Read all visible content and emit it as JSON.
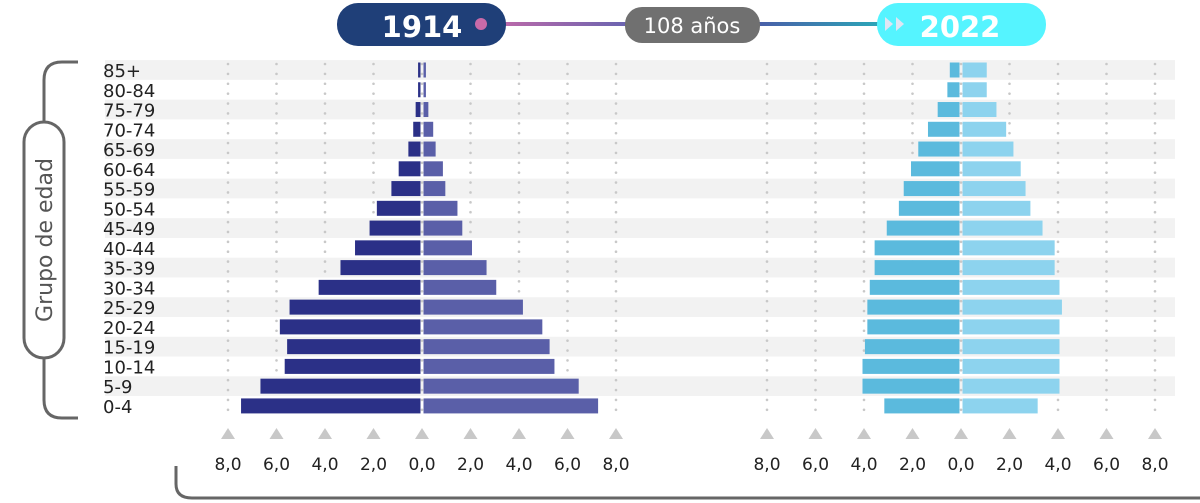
{
  "header": {
    "start_year": "1914",
    "span_label": "108 años",
    "end_year": "2022",
    "start_color": "#1f3f78",
    "span_color": "#707070",
    "end_color": "#55f4ff"
  },
  "y_axis_title": "Grupo de edad",
  "chart_data": [
    {
      "type": "bar",
      "orientation": "horizontal-pyramid",
      "year": "1914",
      "categories": [
        "85+",
        "80-84",
        "75-79",
        "70-74",
        "65-69",
        "60-64",
        "55-59",
        "50-54",
        "45-49",
        "40-44",
        "35-39",
        "30-34",
        "25-29",
        "20-24",
        "15-19",
        "10-14",
        "5-9",
        "0-4"
      ],
      "series": [
        {
          "side": "left",
          "color": "#2b3087",
          "values": [
            0.1,
            0.1,
            0.2,
            0.3,
            0.5,
            0.9,
            1.2,
            1.8,
            2.1,
            2.7,
            3.3,
            4.2,
            5.4,
            5.8,
            5.5,
            5.6,
            6.6,
            7.4
          ]
        },
        {
          "side": "right",
          "color": "#5a5fa8",
          "values": [
            0.1,
            0.1,
            0.2,
            0.4,
            0.5,
            0.8,
            0.9,
            1.4,
            1.6,
            2.0,
            2.6,
            3.0,
            4.1,
            4.9,
            5.2,
            5.4,
            6.4,
            7.2
          ]
        }
      ],
      "xlim": [
        -8,
        8
      ],
      "tick_labels": [
        "8,0",
        "6,0",
        "4,0",
        "2,0",
        "0,0",
        "2,0",
        "4,0",
        "6,0",
        "8,0"
      ],
      "grid": "dotted-vertical"
    },
    {
      "type": "bar",
      "orientation": "horizontal-pyramid",
      "year": "2022",
      "categories": [
        "85+",
        "80-84",
        "75-79",
        "70-74",
        "65-69",
        "60-64",
        "55-59",
        "50-54",
        "45-49",
        "40-44",
        "35-39",
        "30-34",
        "25-29",
        "20-24",
        "15-19",
        "10-14",
        "5-9",
        "0-4"
      ],
      "series": [
        {
          "side": "left",
          "color": "#5bbadd",
          "values": [
            0.4,
            0.5,
            0.9,
            1.3,
            1.7,
            2.0,
            2.3,
            2.5,
            3.0,
            3.5,
            3.5,
            3.7,
            3.8,
            3.8,
            3.9,
            4.0,
            4.0,
            3.1
          ]
        },
        {
          "side": "right",
          "color": "#8dd3ee",
          "values": [
            1.0,
            1.0,
            1.4,
            1.8,
            2.1,
            2.4,
            2.6,
            2.8,
            3.3,
            3.8,
            3.8,
            4.0,
            4.1,
            4.0,
            4.0,
            4.0,
            4.0,
            3.1
          ]
        }
      ],
      "xlim": [
        -8,
        8
      ],
      "tick_labels": [
        "8,0",
        "6,0",
        "4,0",
        "2,0",
        "0,0",
        "2,0",
        "4,0",
        "6,0",
        "8,0"
      ],
      "grid": "dotted-vertical"
    }
  ]
}
